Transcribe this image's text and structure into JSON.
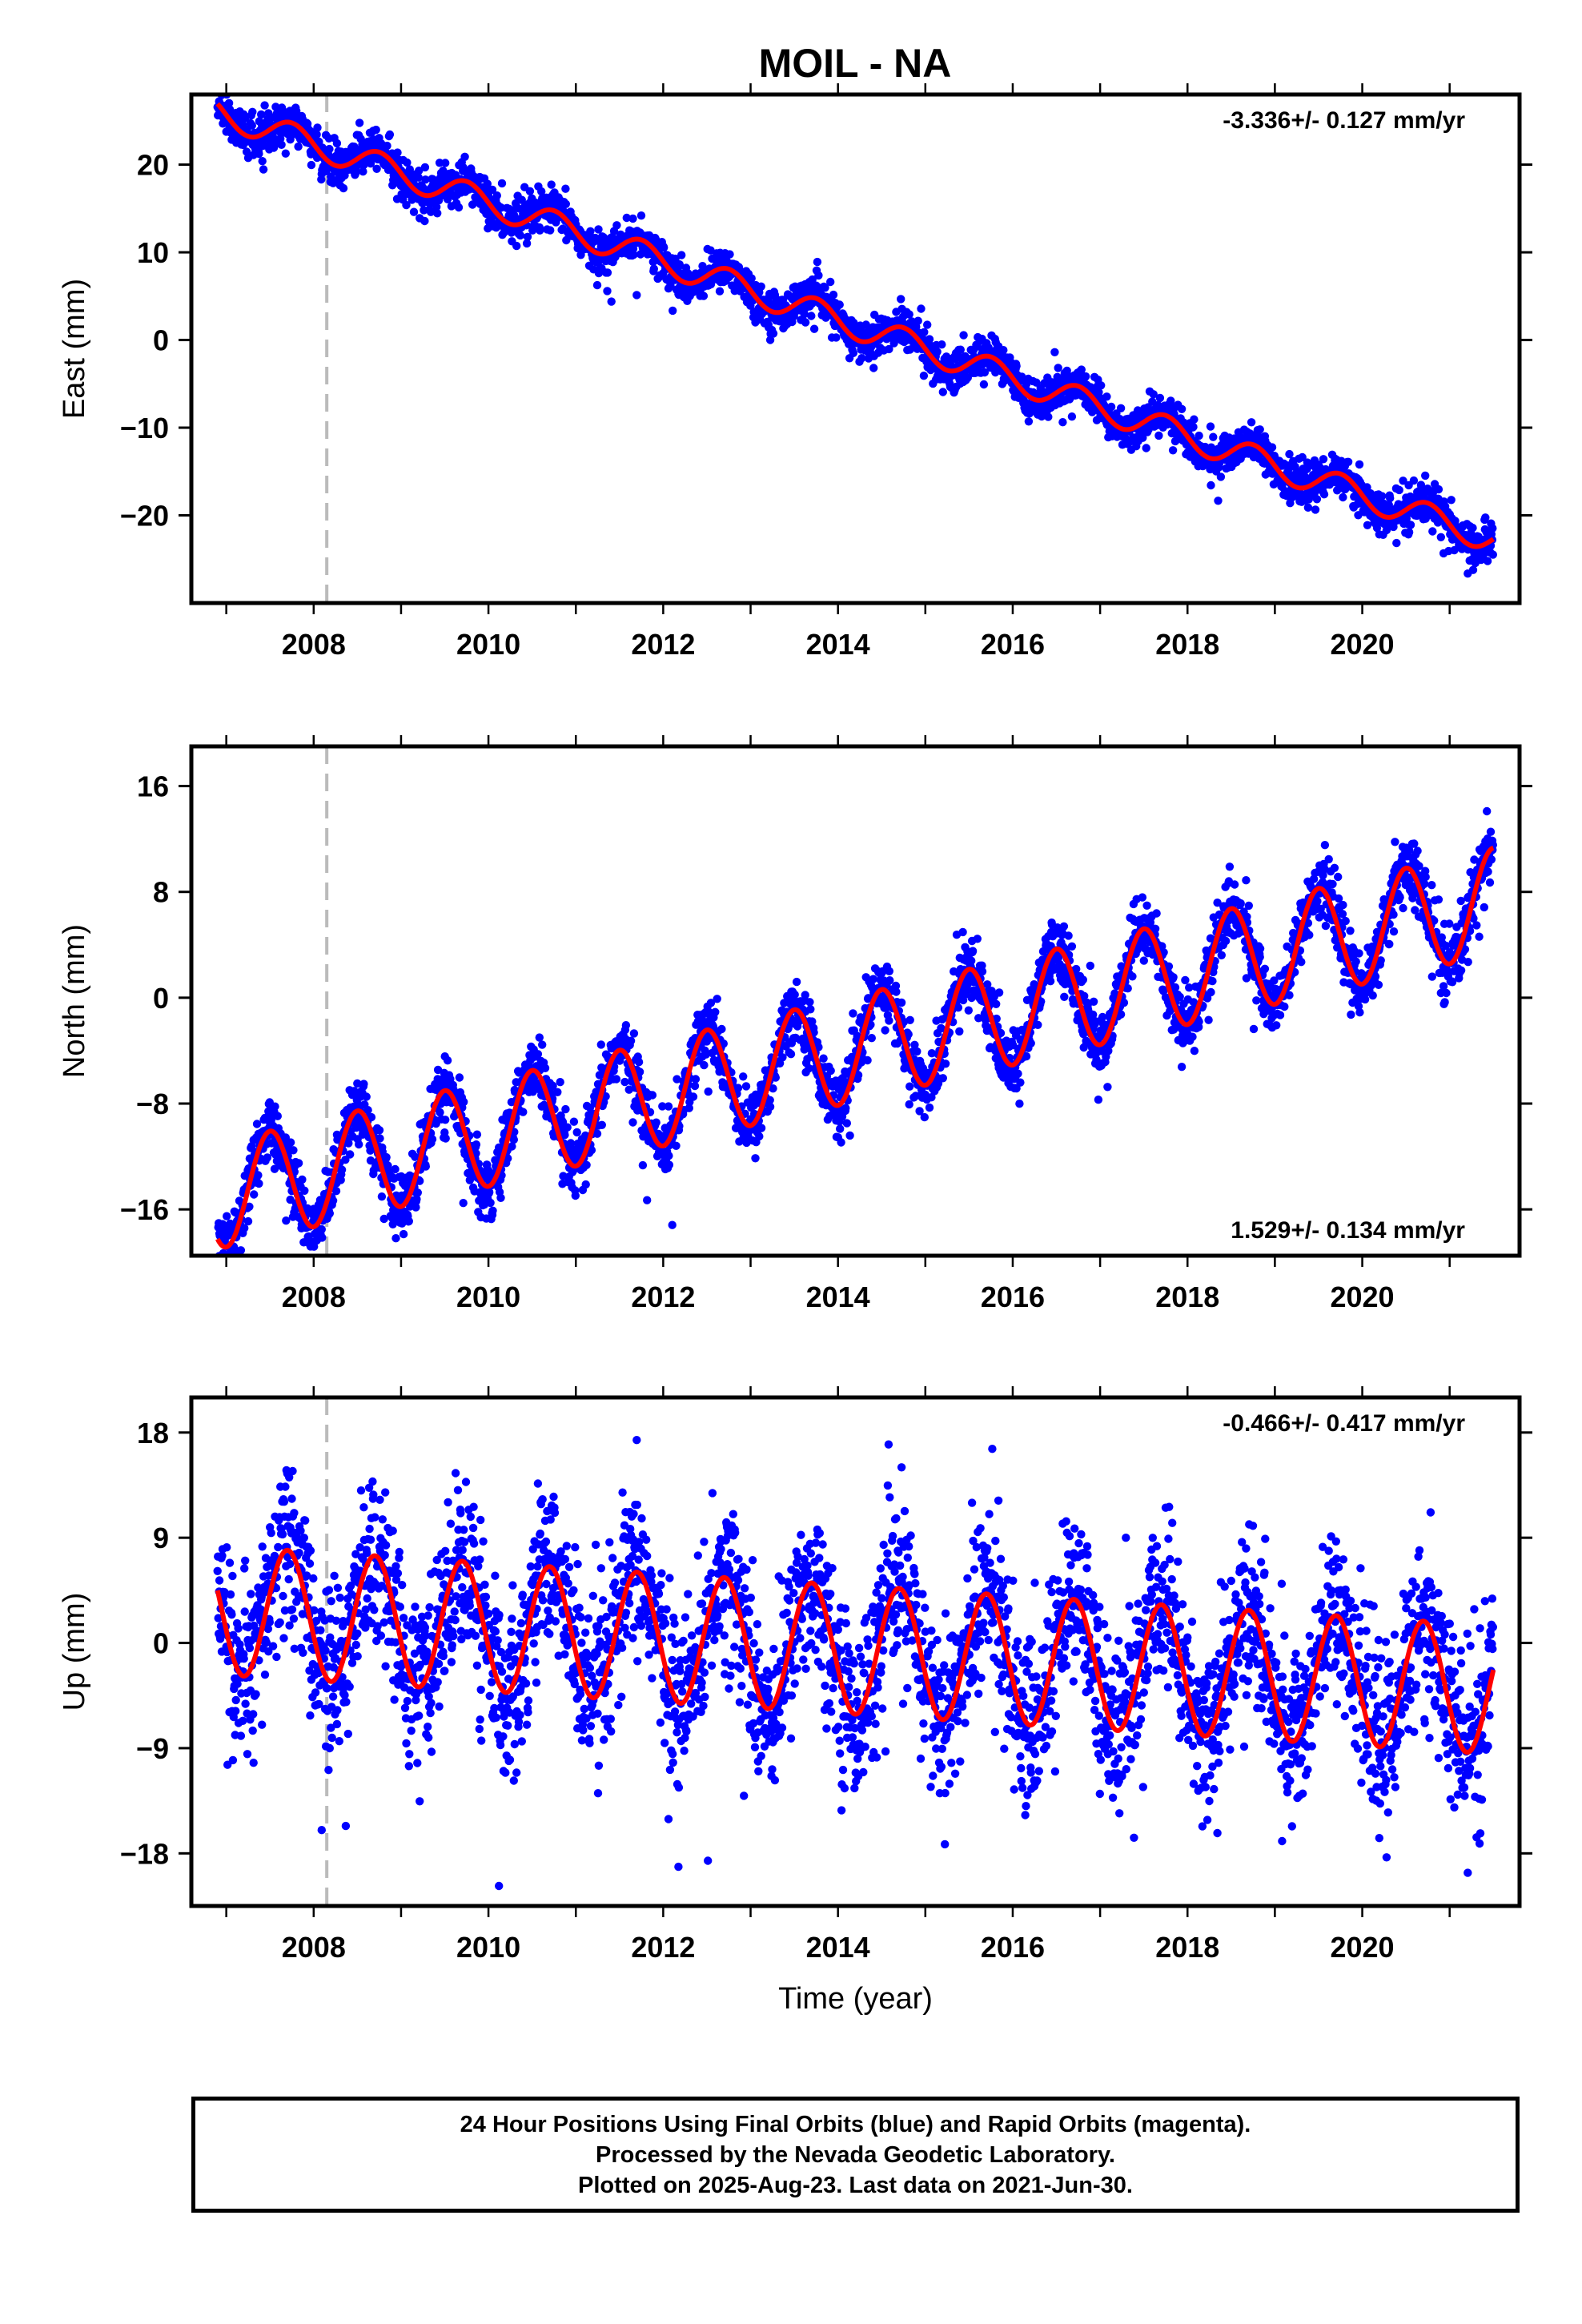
{
  "title": "MOIL - NA",
  "footer": {
    "line1": "24 Hour Positions Using Final Orbits (blue) and Rapid Orbits (magenta).",
    "line2": "Processed by the Nevada Geodetic Laboratory.",
    "line3": "Plotted on 2025-Aug-23. Last data on 2021-Jun-30."
  },
  "colors": {
    "final_orbits": "#0000ff",
    "model_fit": "#ff0000",
    "equipment_change": "#bbbbbb"
  },
  "chart_data": [
    {
      "type": "scatter",
      "name": "east",
      "ylabel": "East (mm)",
      "xlim": [
        2006.6,
        2021.8
      ],
      "ylim": [
        -30,
        28
      ],
      "yticks": [
        -20,
        -10,
        0,
        10,
        20
      ],
      "xticks": [
        2008,
        2010,
        2012,
        2014,
        2016,
        2018,
        2020
      ],
      "rate_label": "-3.336+/- 0.127 mm/yr",
      "rate_position": "top-right",
      "equipment_change_year": 2008.15,
      "model": {
        "start_year": 2006.9,
        "end_year": 2021.5,
        "start_value": 26,
        "rate": -3.336,
        "annual_amplitude": 1.6,
        "annual_peak_year": 2007.75
      },
      "data_start_year": 2006.9,
      "data_end_year": 2021.5,
      "data_scatter_sd": 1.1
    },
    {
      "type": "scatter",
      "name": "north",
      "ylabel": "North (mm)",
      "xlim": [
        2006.6,
        2021.8
      ],
      "ylim": [
        -19.5,
        19
      ],
      "yticks": [
        -16,
        -8,
        0,
        8,
        16
      ],
      "xticks": [
        2008,
        2010,
        2012,
        2014,
        2016,
        2018,
        2020
      ],
      "rate_label": "1.529+/- 0.134 mm/yr",
      "rate_position": "bottom-right",
      "equipment_change_year": 2008.15,
      "model": {
        "start_year": 2006.9,
        "end_year": 2021.5,
        "start_value": -15,
        "rate": 1.529,
        "annual_amplitude": 4.0,
        "annual_peak_year": 2007.5
      },
      "data_start_year": 2006.9,
      "data_end_year": 2021.5,
      "data_scatter_sd": 1.2
    },
    {
      "type": "scatter",
      "name": "up",
      "ylabel": "Up (mm)",
      "xlabel": "Time (year)",
      "xlim": [
        2006.6,
        2021.8
      ],
      "ylim": [
        -22.5,
        21
      ],
      "yticks": [
        -18,
        -9,
        0,
        9,
        18
      ],
      "xticks": [
        2008,
        2010,
        2012,
        2014,
        2016,
        2018,
        2020
      ],
      "rate_label": "-0.466+/- 0.417 mm/yr",
      "rate_position": "top-right",
      "equipment_change_year": 2008.15,
      "model": {
        "start_year": 2006.9,
        "end_year": 2021.5,
        "start_value": 2.8,
        "rate": -0.466,
        "annual_amplitude": 5.5,
        "annual_peak_year": 2007.7
      },
      "data_start_year": 2006.9,
      "data_end_year": 2021.5,
      "data_scatter_sd": 3.6
    }
  ]
}
